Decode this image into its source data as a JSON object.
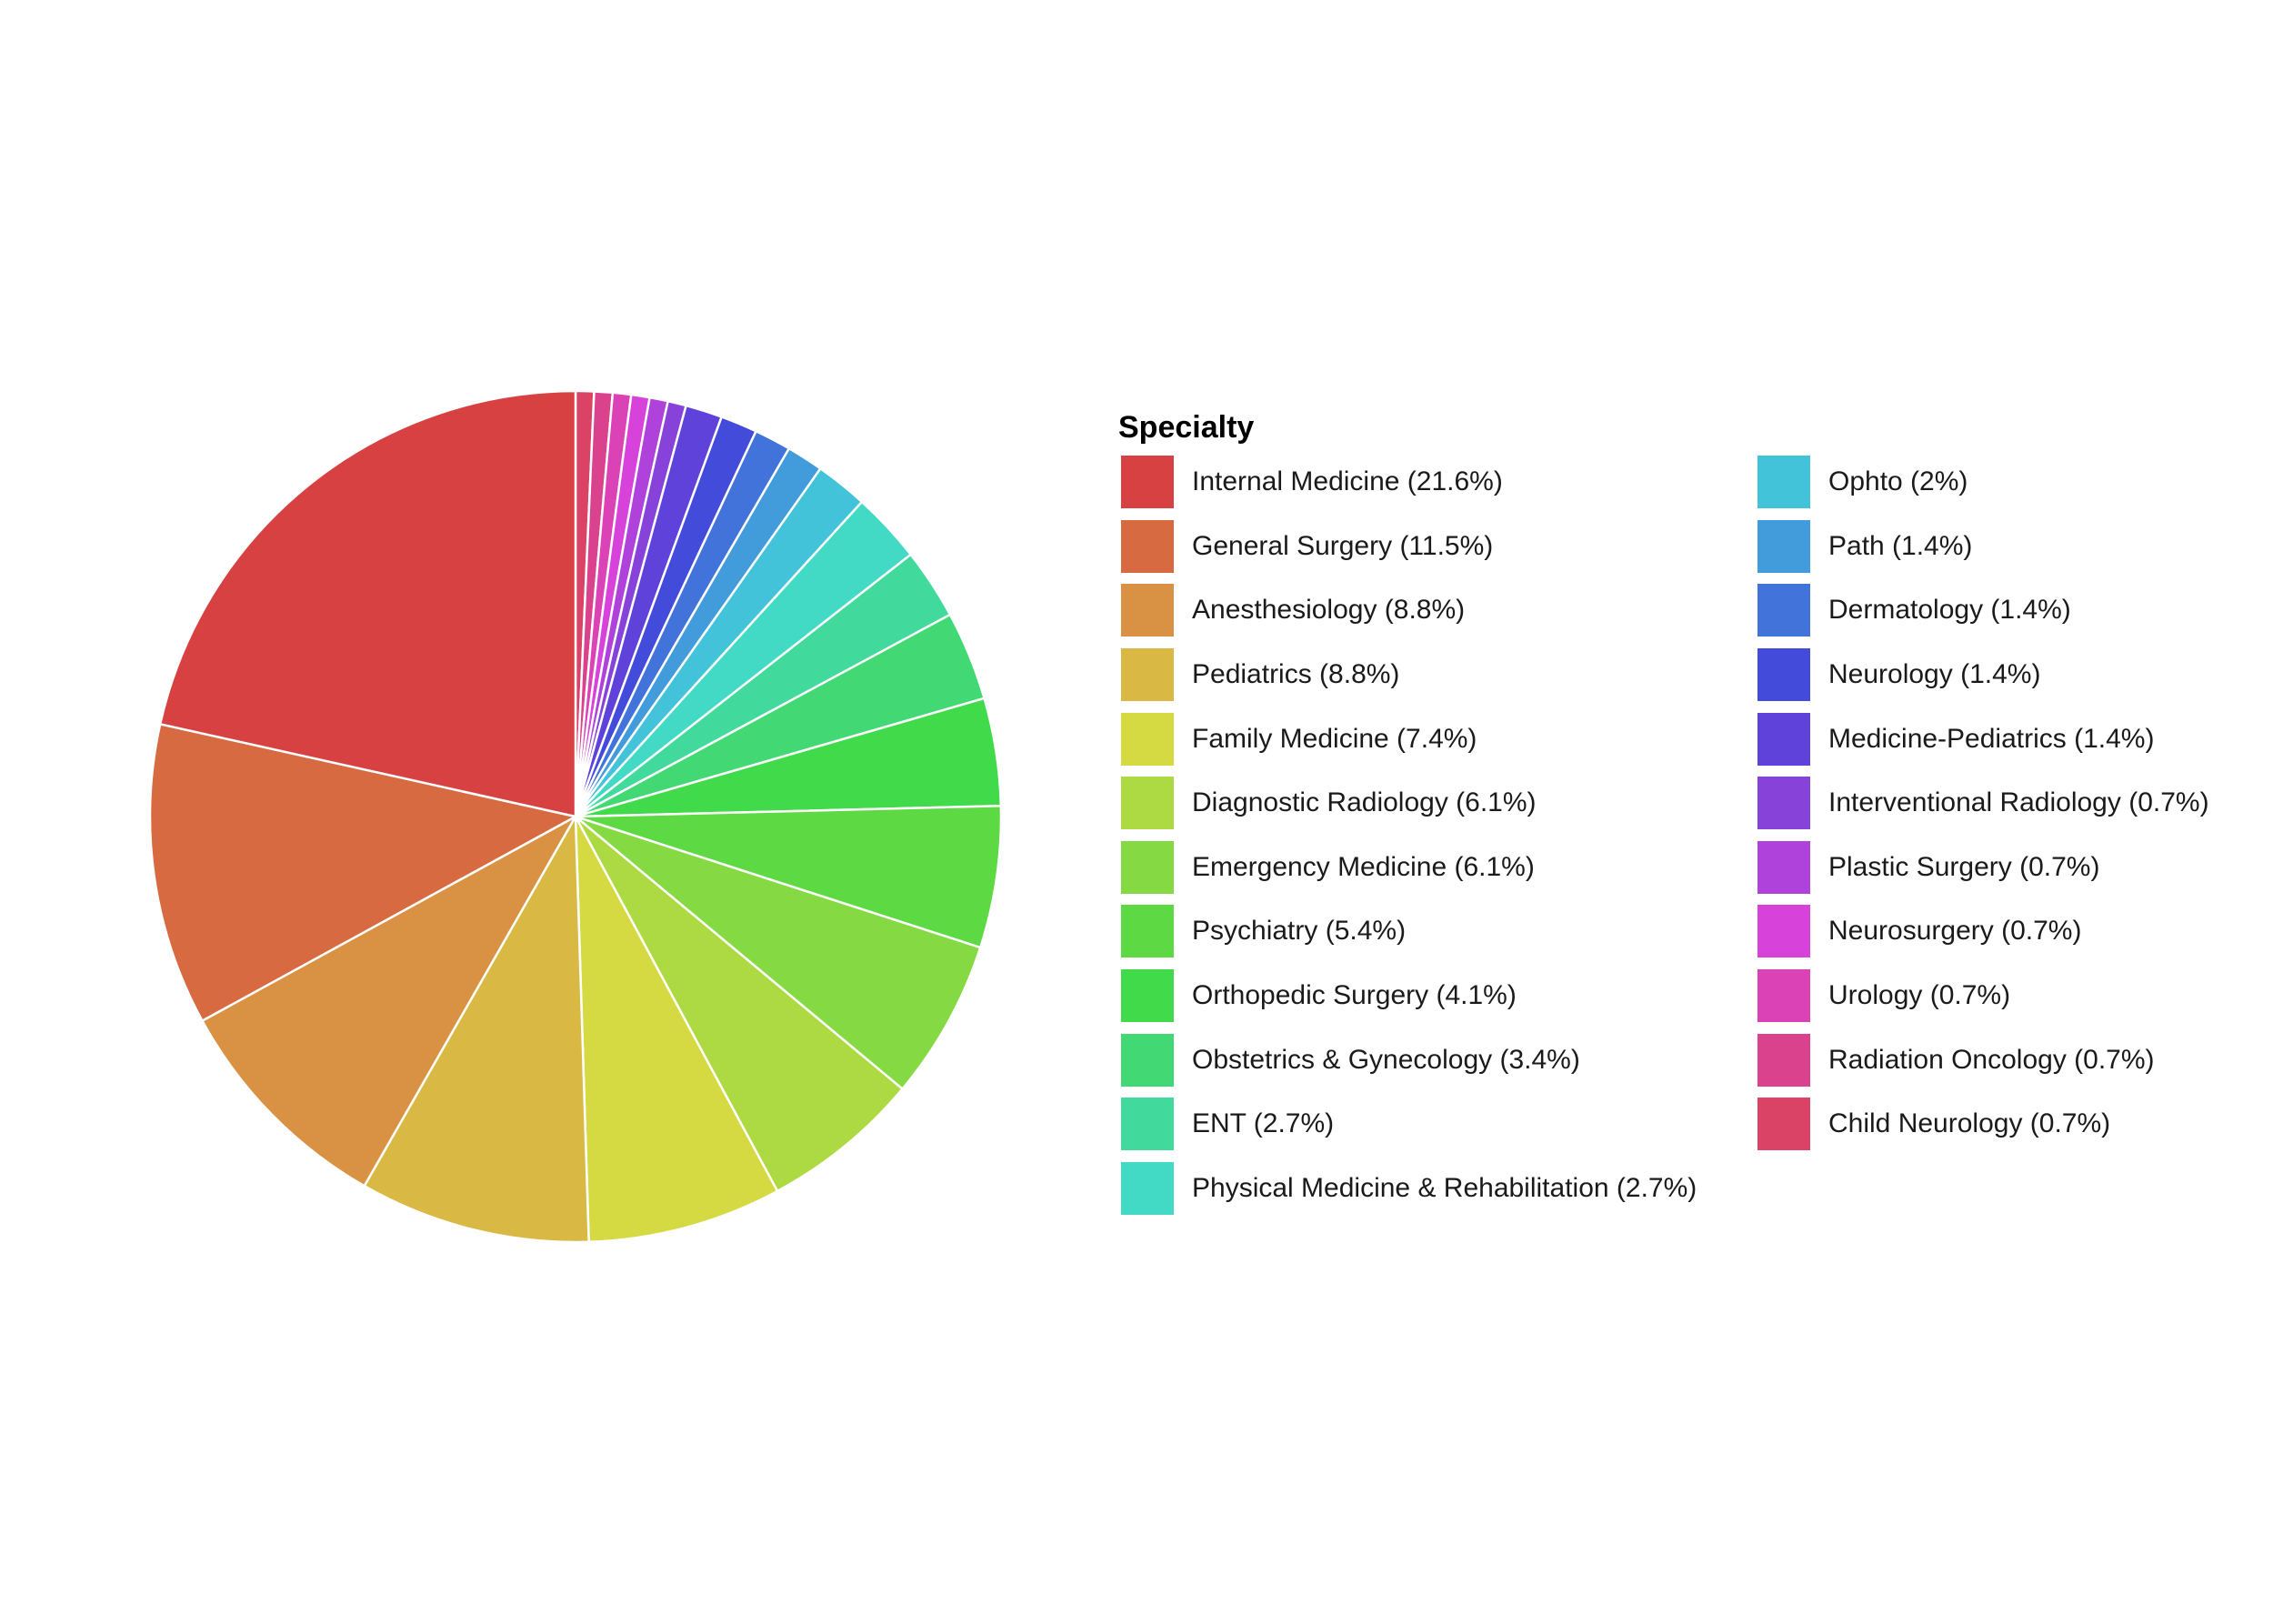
{
  "chart_data": {
    "type": "pie",
    "title": "",
    "legend_title": "Specialty",
    "legend_position": "right",
    "start": "top",
    "direction": "clockwise",
    "slices": [
      {
        "name": "Internal Medicine",
        "value": 21.6,
        "color": "#D74141",
        "label": "Internal Medicine (21.6%)",
        "order": 24
      },
      {
        "name": "General Surgery",
        "value": 11.5,
        "color": "#D86A42",
        "label": "General Surgery (11.5%)",
        "order": 23
      },
      {
        "name": "Anesthesiology",
        "value": 8.8,
        "color": "#D99143",
        "label": "Anesthesiology (8.8%)",
        "order": 22
      },
      {
        "name": "Pediatrics",
        "value": 8.8,
        "color": "#D9B943",
        "label": "Pediatrics (8.8%)",
        "order": 21
      },
      {
        "name": "Family Medicine",
        "value": 7.4,
        "color": "#D5DA42",
        "label": "Family Medicine (7.4%)",
        "order": 20
      },
      {
        "name": "Diagnostic Radiology",
        "value": 6.1,
        "color": "#ADDA43",
        "label": "Diagnostic Radiology (6.1%)",
        "order": 19
      },
      {
        "name": "Emergency Medicine",
        "value": 6.1,
        "color": "#85DA43",
        "label": "Emergency Medicine (6.1%)",
        "order": 18
      },
      {
        "name": "Psychiatry",
        "value": 5.4,
        "color": "#5DDA43",
        "label": "Psychiatry (5.4%)",
        "order": 17
      },
      {
        "name": "Orthopedic Surgery",
        "value": 4.1,
        "color": "#41DA4A",
        "label": "Orthopedic Surgery (4.1%)",
        "order": 16
      },
      {
        "name": "Obstetrics & Gynecology",
        "value": 3.4,
        "color": "#42D974",
        "label": "Obstetrics & Gynecology (3.4%)",
        "order": 15
      },
      {
        "name": "ENT",
        "value": 2.7,
        "color": "#42D99C",
        "label": "ENT (2.7%)",
        "order": 14
      },
      {
        "name": "Physical Medicine & Rehabilitation",
        "value": 2.7,
        "color": "#42DAC4",
        "label": "Physical Medicine & Rehabilitation (2.7%)",
        "order": 13
      },
      {
        "name": "Ophto",
        "value": 2.0,
        "color": "#42C3DA",
        "label": "Ophto (2%)",
        "order": 12
      },
      {
        "name": "Path",
        "value": 1.4,
        "color": "#429BDA",
        "label": "Path (1.4%)",
        "order": 11
      },
      {
        "name": "Dermatology",
        "value": 1.4,
        "color": "#4273DA",
        "label": "Dermatology (1.4%)",
        "order": 10
      },
      {
        "name": "Neurology",
        "value": 1.4,
        "color": "#424BDA",
        "label": "Neurology (1.4%)",
        "order": 9
      },
      {
        "name": "Medicine-Pediatrics",
        "value": 1.4,
        "color": "#5F42DA",
        "label": "Medicine-Pediatrics (1.4%)",
        "order": 8
      },
      {
        "name": "Interventional Radiology",
        "value": 0.7,
        "color": "#8742DA",
        "label": "Interventional Radiology (0.7%)",
        "order": 7
      },
      {
        "name": "Plastic Surgery",
        "value": 0.7,
        "color": "#AF42DA",
        "label": "Plastic Surgery (0.7%)",
        "order": 6
      },
      {
        "name": "Neurosurgery",
        "value": 0.7,
        "color": "#D742DA",
        "label": "Neurosurgery (0.7%)",
        "order": 5
      },
      {
        "name": "Urology",
        "value": 0.7,
        "color": "#DA42B6",
        "label": "Urology (0.7%)",
        "order": 4
      },
      {
        "name": "Radiation Oncology",
        "value": 0.7,
        "color": "#DA428E",
        "label": "Radiation Oncology (0.7%)",
        "order": 3
      },
      {
        "name": "Child Neurology",
        "value": 0.7,
        "color": "#DA4266",
        "label": "Child Neurology (0.7%)",
        "order": 2
      }
    ]
  }
}
